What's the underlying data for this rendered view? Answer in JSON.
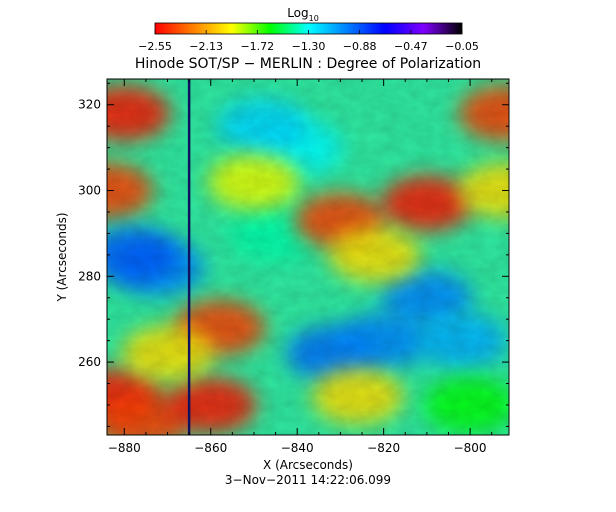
{
  "chart_data": {
    "type": "heatmap",
    "title": "Hinode SOT/SP − MERLIN : Degree of Polarization",
    "colorbar": {
      "label": "Log",
      "label_subscript": "10",
      "ticks": [
        "−2.55",
        "−2.13",
        "−1.72",
        "−1.30",
        "−0.88",
        "−0.47",
        "−0.05"
      ],
      "range": [
        -2.55,
        -0.05
      ],
      "colormap": [
        "#ff0000",
        "#ff8000",
        "#ffff00",
        "#00ff00",
        "#00ffff",
        "#0080ff",
        "#0000ff",
        "#8000ff",
        "#000000"
      ]
    },
    "xlabel": "X (Arcseconds)",
    "ylabel": "Y (Arcseconds)",
    "xlim": [
      -884,
      -791
    ],
    "ylim": [
      243,
      326
    ],
    "xticks": [
      -880,
      -860,
      -840,
      -820,
      -800
    ],
    "xtick_labels": [
      "−880",
      "−860",
      "−840",
      "−820",
      "−800"
    ],
    "yticks": [
      260,
      280,
      300,
      320
    ],
    "ytick_labels": [
      "260",
      "280",
      "300",
      "320"
    ],
    "slit_line_x": -865,
    "slit_line_color": "#101060",
    "regions": [
      {
        "x": -880,
        "y": 318,
        "value": -2.5
      },
      {
        "x": -884,
        "y": 300,
        "value": -2.4
      },
      {
        "x": -882,
        "y": 252,
        "value": -2.5
      },
      {
        "x": -876,
        "y": 246,
        "value": -2.4
      },
      {
        "x": -872,
        "y": 282,
        "value": -1.0
      },
      {
        "x": -878,
        "y": 285,
        "value": -0.9
      },
      {
        "x": -840,
        "y": 310,
        "value": -1.3
      },
      {
        "x": -832,
        "y": 262,
        "value": -0.95
      },
      {
        "x": -820,
        "y": 265,
        "value": -1.0
      },
      {
        "x": -810,
        "y": 275,
        "value": -1.0
      },
      {
        "x": -802,
        "y": 265,
        "value": -1.1
      },
      {
        "x": -848,
        "y": 315,
        "value": -1.2
      },
      {
        "x": -845,
        "y": 290,
        "value": -1.4
      },
      {
        "x": -830,
        "y": 293,
        "value": -2.4
      },
      {
        "x": -810,
        "y": 297,
        "value": -2.5
      },
      {
        "x": -822,
        "y": 285,
        "value": -2.0
      },
      {
        "x": -858,
        "y": 268,
        "value": -2.4
      },
      {
        "x": -860,
        "y": 250,
        "value": -2.5
      },
      {
        "x": -826,
        "y": 252,
        "value": -2.0
      },
      {
        "x": -792,
        "y": 318,
        "value": -2.4
      },
      {
        "x": -792,
        "y": 300,
        "value": -2.0
      },
      {
        "x": -850,
        "y": 302,
        "value": -1.9
      },
      {
        "x": -870,
        "y": 262,
        "value": -2.0
      },
      {
        "x": -800,
        "y": 250,
        "value": -1.6
      }
    ],
    "timestamp": "3−Nov−2011 14:22:06.099"
  }
}
